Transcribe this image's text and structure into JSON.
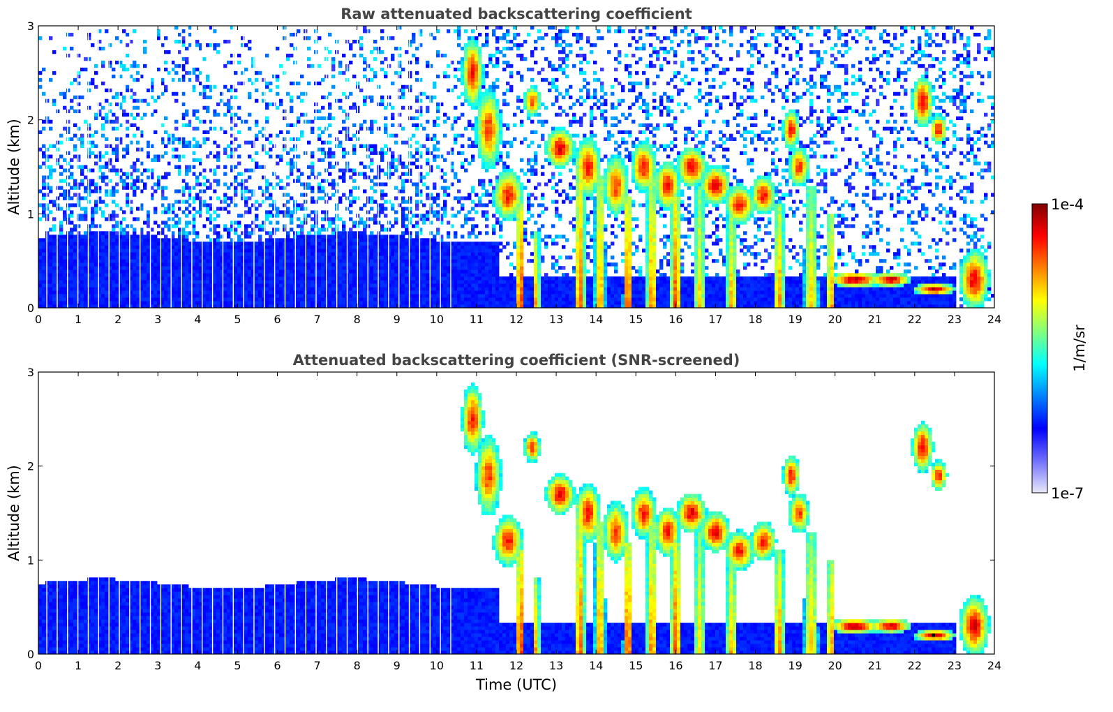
{
  "chart_data": [
    {
      "type": "heatmap",
      "title": "Raw attenuated backscattering coefficient",
      "xlabel": "",
      "ylabel": "Altitude (km)",
      "xlim": [
        0,
        24
      ],
      "ylim": [
        0,
        3
      ],
      "x_ticks": [
        "0",
        "1",
        "2",
        "3",
        "4",
        "5",
        "6",
        "7",
        "8",
        "9",
        "10",
        "11",
        "12",
        "13",
        "14",
        "15",
        "16",
        "17",
        "18",
        "19",
        "20",
        "21",
        "22",
        "23",
        "24"
      ],
      "y_ticks": [
        "0",
        "1",
        "2",
        "3"
      ],
      "screened": false
    },
    {
      "type": "heatmap",
      "title": "Attenuated backscattering coefficient (SNR-screened)",
      "xlabel": "Time (UTC)",
      "ylabel": "Altitude (km)",
      "xlim": [
        0,
        24
      ],
      "ylim": [
        0,
        3
      ],
      "x_ticks": [
        "0",
        "1",
        "2",
        "3",
        "4",
        "5",
        "6",
        "7",
        "8",
        "9",
        "10",
        "11",
        "12",
        "13",
        "14",
        "15",
        "16",
        "17",
        "18",
        "19",
        "20",
        "21",
        "22",
        "23",
        "24"
      ],
      "y_ticks": [
        "0",
        "1",
        "2",
        "3"
      ],
      "screened": true
    }
  ],
  "colorbar": {
    "label": "1/m/sr",
    "max_label": "1e-4",
    "min_label": "1e-7",
    "scale": "log",
    "range": [
      1e-07,
      0.0001
    ],
    "colormap": [
      "#e8e8f8",
      "#7070ff",
      "#0000ff",
      "#0080ff",
      "#00ffff",
      "#80ff80",
      "#ffff00",
      "#ff8000",
      "#ff0000",
      "#800000"
    ]
  }
}
